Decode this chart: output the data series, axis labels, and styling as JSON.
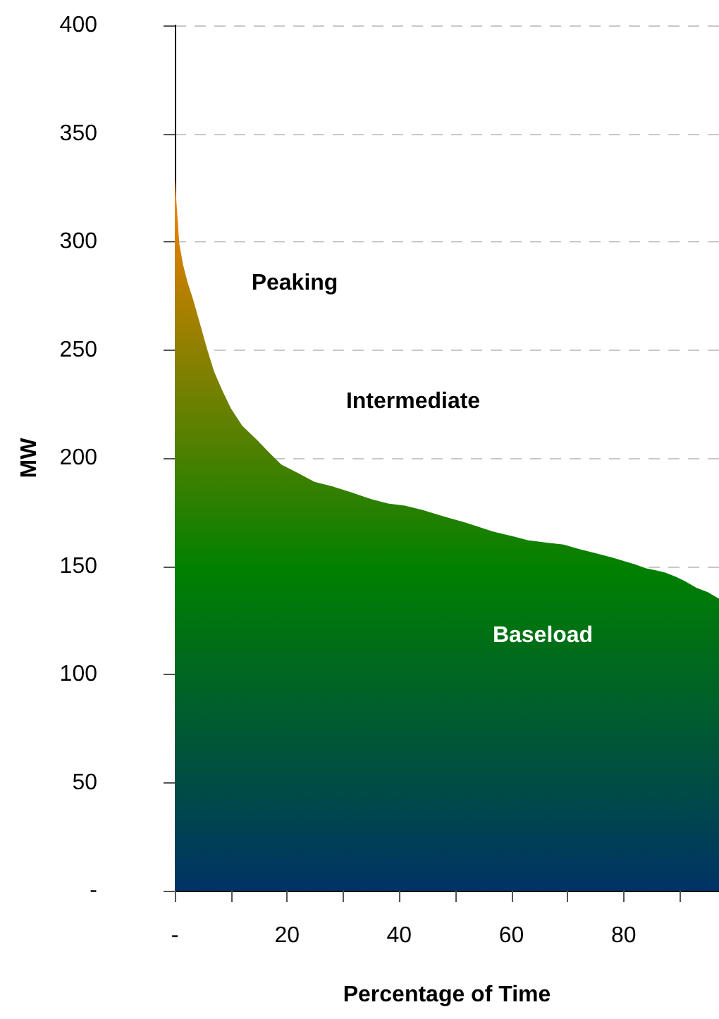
{
  "chart_data": {
    "type": "area",
    "xlabel": "Percentage of Time",
    "ylabel": "MW",
    "x": [
      0,
      0.3,
      0.8,
      1.5,
      2.3,
      3.3,
      4.5,
      5.8,
      7,
      8.5,
      10,
      12,
      14.8,
      17,
      19,
      22,
      24.9,
      28,
      31.6,
      35,
      38,
      41,
      44.2,
      48,
      52,
      56.8,
      60,
      63,
      66,
      69.3,
      72,
      75,
      78,
      81.9,
      84,
      86,
      87.5,
      89.4,
      91,
      93,
      95,
      97
    ],
    "series": [
      {
        "color": "#008000",
        "values": [
          330,
          318,
          299,
          289,
          281,
          273,
          262,
          250,
          240,
          231,
          223,
          215,
          208,
          202,
          197,
          193,
          189,
          187,
          184,
          181,
          179,
          178,
          176,
          173,
          170,
          166,
          164,
          162,
          161,
          160,
          158,
          156,
          154,
          151,
          149,
          148,
          147,
          145,
          143,
          140,
          138,
          135
        ]
      }
    ],
    "xlim": [
      0,
      97
    ],
    "ylim": [
      0,
      400
    ],
    "xticks": [
      {
        "value": 0,
        "label": "-"
      },
      {
        "value": 10,
        "label": null
      },
      20,
      {
        "value": 30,
        "label": null
      },
      40,
      {
        "value": 50,
        "label": null
      },
      60,
      {
        "value": 70,
        "label": null
      },
      80,
      {
        "value": 90,
        "label": null
      }
    ],
    "yticks": [
      {
        "value": 0,
        "label": "-"
      },
      50,
      100,
      150,
      200,
      250,
      300,
      350,
      400
    ],
    "grid": "y",
    "annotations": [
      "Peaking",
      "Intermediate",
      "Baseload"
    ]
  }
}
